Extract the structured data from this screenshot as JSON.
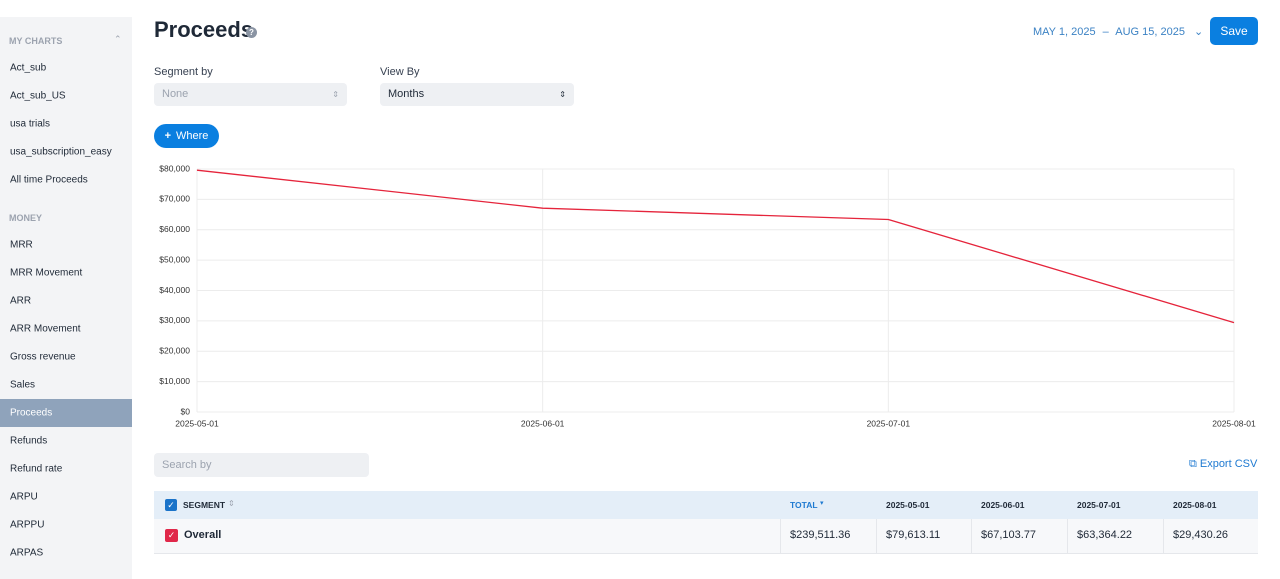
{
  "sidebar": {
    "sections": [
      {
        "title": "MY CHARTS",
        "items": [
          {
            "label": "Act_sub"
          },
          {
            "label": "Act_sub_US"
          },
          {
            "label": "usa trials"
          },
          {
            "label": "usa_subscription_easy"
          },
          {
            "label": "All time Proceeds"
          }
        ]
      },
      {
        "title": "MONEY",
        "items": [
          {
            "label": "MRR"
          },
          {
            "label": "MRR Movement"
          },
          {
            "label": "ARR"
          },
          {
            "label": "ARR Movement"
          },
          {
            "label": "Gross revenue"
          },
          {
            "label": "Sales"
          },
          {
            "label": "Proceeds",
            "selected": true
          },
          {
            "label": "Refunds"
          },
          {
            "label": "Refund rate"
          },
          {
            "label": "ARPU"
          },
          {
            "label": "ARPPU"
          },
          {
            "label": "ARPAS"
          }
        ]
      }
    ]
  },
  "header": {
    "title": "Proceeds",
    "date_start": "MAY 1, 2025",
    "date_separator": "–",
    "date_end": "AUG 15, 2025",
    "save": "Save"
  },
  "controls": {
    "segment_by": {
      "label": "Segment by",
      "value": "None"
    },
    "view_by": {
      "label": "View By",
      "value": "Months"
    },
    "where": "Where"
  },
  "chart_data": {
    "type": "line",
    "categories": [
      "2025-05-01",
      "2025-06-01",
      "2025-07-01",
      "2025-08-01"
    ],
    "series": [
      {
        "color": "#e5243b",
        "values": [
          79613.11,
          67103.77,
          63364.22,
          29430.26
        ]
      }
    ],
    "ylim": [
      0,
      80000
    ],
    "yticks": [
      {
        "value": 0,
        "label": "$0"
      },
      {
        "value": 10000,
        "label": "$10,000"
      },
      {
        "value": 20000,
        "label": "$20,000"
      },
      {
        "value": 30000,
        "label": "$30,000"
      },
      {
        "value": 40000,
        "label": "$40,000"
      },
      {
        "value": 50000,
        "label": "$50,000"
      },
      {
        "value": 60000,
        "label": "$60,000"
      },
      {
        "value": 70000,
        "label": "$70,000"
      },
      {
        "value": 80000,
        "label": "$80,000"
      }
    ],
    "grid": true
  },
  "search_placeholder": "Search by",
  "export": "Export CSV",
  "table": {
    "columns": [
      "SEGMENT",
      "TOTAL",
      "2025-05-01",
      "2025-06-01",
      "2025-07-01",
      "2025-08-01"
    ],
    "rows": [
      [
        "Overall",
        "$239,511.36",
        "$79,613.11",
        "$67,103.77",
        "$63,364.22",
        "$29,430.26"
      ]
    ]
  }
}
